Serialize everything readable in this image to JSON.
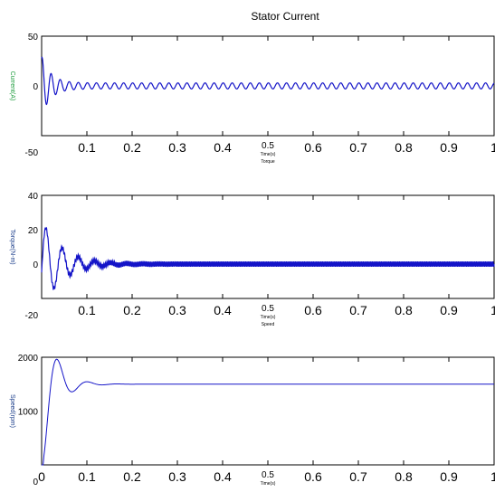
{
  "figure": {
    "title": "Stator Current",
    "colors": {
      "trace": "#1414c8",
      "axis": "#000000",
      "ylabel": "#1a3d8a"
    }
  },
  "chart_data": [
    {
      "type": "line",
      "title": "Stator Current",
      "xlabel": "Time(s)",
      "xlabel_small": "0.5",
      "xlabel_sub": "Torque",
      "ylabel": "Current(A)",
      "xlim": [
        0,
        1
      ],
      "ylim": [
        -50,
        50
      ],
      "x_ticks": [
        "0.1",
        "0.2",
        "0.3",
        "0.4",
        "0.6",
        "0.7",
        "0.8",
        "0.9",
        "1"
      ],
      "y_ticks": [
        "50",
        "0",
        "-50"
      ],
      "grid": false,
      "series": [
        {
          "model": "decaying_oscillation",
          "initial_amplitude": 30,
          "steady_amplitude": 3,
          "decay_time_s": 0.02,
          "frequency_hz": 50,
          "settled_after_s": 0.1
        }
      ]
    },
    {
      "type": "line",
      "title": "",
      "xlabel": "Time(s)",
      "xlabel_small": "0.5",
      "xlabel_sub": "Speed",
      "ylabel": "Torque(N-m)",
      "xlim": [
        0,
        1
      ],
      "ylim": [
        -20,
        40
      ],
      "x_ticks": [
        "0.1",
        "0.2",
        "0.3",
        "0.4",
        "0.6",
        "0.7",
        "0.8",
        "0.9",
        "1"
      ],
      "y_ticks": [
        "40",
        "20",
        "0",
        "-20"
      ],
      "grid": false,
      "series": [
        {
          "model": "damped_transient_with_ripple",
          "peak_value": 26,
          "peak_time_s": 0.01,
          "settled_value": 0,
          "ripple_amplitude": 1.5,
          "settled_after_s": 0.22
        }
      ]
    },
    {
      "type": "line",
      "title": "",
      "xlabel": "Time(s)",
      "xlabel_small": "0.5",
      "ylabel": "Speed(rpm)",
      "xlim": [
        0,
        1
      ],
      "ylim": [
        0,
        2000
      ],
      "x_ticks": [
        "0",
        "0.1",
        "0.2",
        "0.3",
        "0.4",
        "0.6",
        "0.7",
        "0.8",
        "0.9",
        "1"
      ],
      "y_ticks": [
        "2000",
        "1000",
        "0"
      ],
      "grid": false,
      "series": [
        {
          "model": "step_response",
          "final_value": 1500,
          "peak_value": 1600,
          "peak_time_s": 0.05,
          "settled_after_s": 0.2
        }
      ]
    }
  ]
}
